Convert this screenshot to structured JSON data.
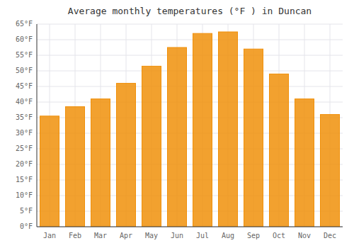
{
  "chart_data": {
    "type": "bar",
    "title": "Average monthly temperatures (°F ) in Duncan",
    "categories": [
      "Jan",
      "Feb",
      "Mar",
      "Apr",
      "May",
      "Jun",
      "Jul",
      "Aug",
      "Sep",
      "Oct",
      "Nov",
      "Dec"
    ],
    "values": [
      35.5,
      38.5,
      41.0,
      46.0,
      51.5,
      57.5,
      62.0,
      62.5,
      57.0,
      49.0,
      41.0,
      36.0
    ],
    "color": "#F0900A",
    "ylim": [
      0,
      65
    ],
    "yticks": [
      {
        "value": 0,
        "label": "0°F"
      },
      {
        "value": 5,
        "label": "5°F"
      },
      {
        "value": 10,
        "label": "10°F"
      },
      {
        "value": 15,
        "label": "15°F"
      },
      {
        "value": 20,
        "label": "20°F"
      },
      {
        "value": 25,
        "label": "25°F"
      },
      {
        "value": 30,
        "label": "30°F"
      },
      {
        "value": 35,
        "label": "35°F"
      },
      {
        "value": 40,
        "label": "40°F"
      },
      {
        "value": 45,
        "label": "45°F"
      },
      {
        "value": 50,
        "label": "50°F"
      },
      {
        "value": 55,
        "label": "55°F"
      },
      {
        "value": 60,
        "label": "60°F"
      },
      {
        "value": 65,
        "label": "65°F"
      }
    ],
    "grid": true
  }
}
